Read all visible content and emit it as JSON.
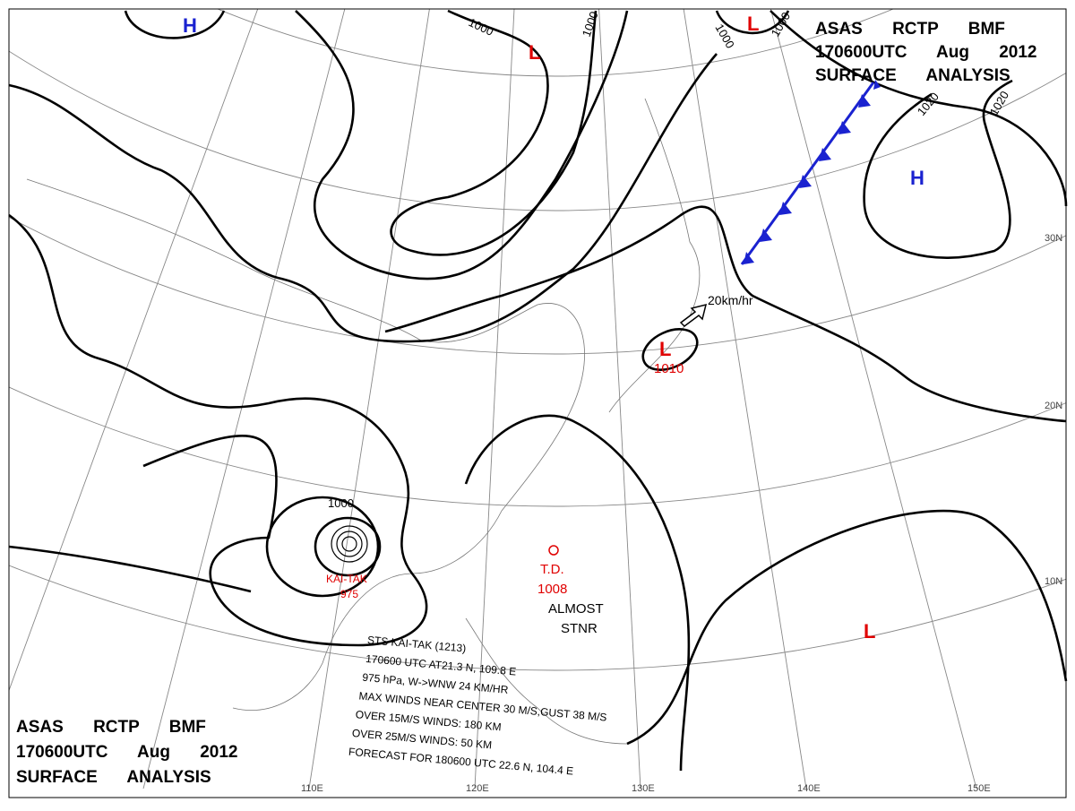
{
  "header": {
    "title_lines": [
      "ASAS RCTP BMF",
      "170600UTC Aug 2012",
      "SURFACE ANALYSIS"
    ]
  },
  "grid": {
    "lat_labels": [
      "30N",
      "20N",
      "10N"
    ],
    "lon_labels": [
      "110E",
      "120E",
      "130E",
      "140E",
      "150E"
    ]
  },
  "centers": [
    {
      "kind": "H"
    },
    {
      "kind": "H"
    },
    {
      "kind": "L"
    },
    {
      "kind": "L"
    },
    {
      "kind": "L",
      "pressure": "1010"
    },
    {
      "kind": "L"
    }
  ],
  "isobar_labels": [
    "1000",
    "1000",
    "1000",
    "1000",
    "1000",
    "1020",
    "1020"
  ],
  "typhoon": {
    "name": "KAI-TAK",
    "pressure": "975",
    "info": [
      "STS KAI-TAK (1213)",
      "170600 UTC AT21.3 N, 109.8 E",
      "975 hPa, W->WNW 24 KM/HR",
      "MAX WINDS NEAR CENTER 30 M/S,GUST 38 M/S",
      "OVER 15M/S WINDS: 180 KM",
      "OVER 25M/S WINDS: 50 KM",
      "FORECAST FOR 180600 UTC 22.6 N, 104.4 E"
    ]
  },
  "depression": {
    "label": "T.D.",
    "pressure": "1008",
    "motion": [
      "ALMOST",
      "STNR"
    ]
  },
  "motion_label": "20km/hr"
}
